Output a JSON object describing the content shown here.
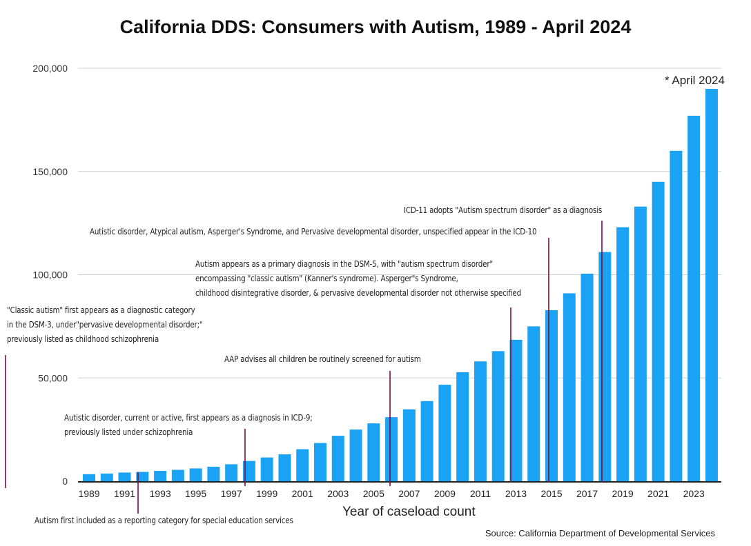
{
  "chart_data": {
    "type": "bar",
    "title": "California DDS: Consumers with Autism, 1989 - April 2024",
    "xlabel": "Year of caseload count",
    "ylabel": "",
    "ylim": [
      0,
      200000
    ],
    "yticks": [
      "0",
      "50,000",
      "100,000",
      "150,000",
      "200,000"
    ],
    "ytick_values": [
      0,
      50000,
      100000,
      150000,
      200000
    ],
    "grid": true,
    "color": "#1aa3f5",
    "categories": [
      "1989",
      "1990",
      "1991",
      "1992",
      "1993",
      "1994",
      "1995",
      "1996",
      "1997",
      "1998",
      "1999",
      "2000",
      "2001",
      "2002",
      "2003",
      "2004",
      "2005",
      "2006",
      "2007",
      "2008",
      "2009",
      "2010",
      "2011",
      "2012",
      "2013",
      "2014",
      "2015",
      "2016",
      "2017",
      "2018",
      "2019",
      "2020",
      "2021",
      "2022",
      "2023",
      "2024"
    ],
    "xtick_labels": [
      "1989",
      "1991",
      "1993",
      "1995",
      "1997",
      "1999",
      "2001",
      "2003",
      "2005",
      "2007",
      "2009",
      "2011",
      "2013",
      "2015",
      "2017",
      "2019",
      "2021",
      "2023"
    ],
    "values": [
      3400,
      3700,
      4200,
      4500,
      5000,
      5500,
      6200,
      7000,
      8200,
      9800,
      11500,
      13000,
      15500,
      18500,
      22000,
      25000,
      28000,
      31000,
      34800,
      38800,
      46700,
      52800,
      58000,
      63000,
      68500,
      75000,
      82800,
      91000,
      100500,
      111000,
      123000,
      133000,
      145000,
      160000,
      177000,
      190000
    ],
    "last_bar_note": "* April 2024",
    "source": "Source: California Department of Developmental Services",
    "annotation_color": "#7a1040",
    "annotations": [
      {
        "year": 1980,
        "lines": [
          "\"Classic autism\" first appears as a diagnostic category",
          " in the  DSM-3,  under\"pervasive developmental disorder;\"",
          "previously listed as childhood schizophrenia"
        ]
      },
      {
        "year": 1991,
        "lines": [
          "Autism first included as a reporting category for special education services"
        ]
      },
      {
        "year": 1998,
        "lines": [
          "Autistic disorder, current or active, first appears as a diagnosis in ICD-9;",
          "previously listed under schizophrenia"
        ]
      },
      {
        "year": 2006,
        "lines": [
          "AAP advises all children be routinely screened for autism"
        ]
      },
      {
        "year": 2013,
        "lines": [
          "Autism appears as a primary diagnosis in the DSM-5, with \"autism spectrum disorder\"",
          "encompassing \"classic autism\" (Kanner's syndrome). Asperger\"s Syndrome,",
          "childhood disintegrative disorder, & pervasive developmental disorder not otherwise specified"
        ]
      },
      {
        "year": 2015,
        "lines": [
          "Autistic disorder, Atypical autism, Asperger's Syndrome, and Pervasive developmental disorder, unspecified appear in the ICD-10"
        ]
      },
      {
        "year": 2018,
        "lines": [
          "ICD-11 adopts \"Autism spectrum disorder\" as a diagnosis"
        ]
      }
    ]
  }
}
